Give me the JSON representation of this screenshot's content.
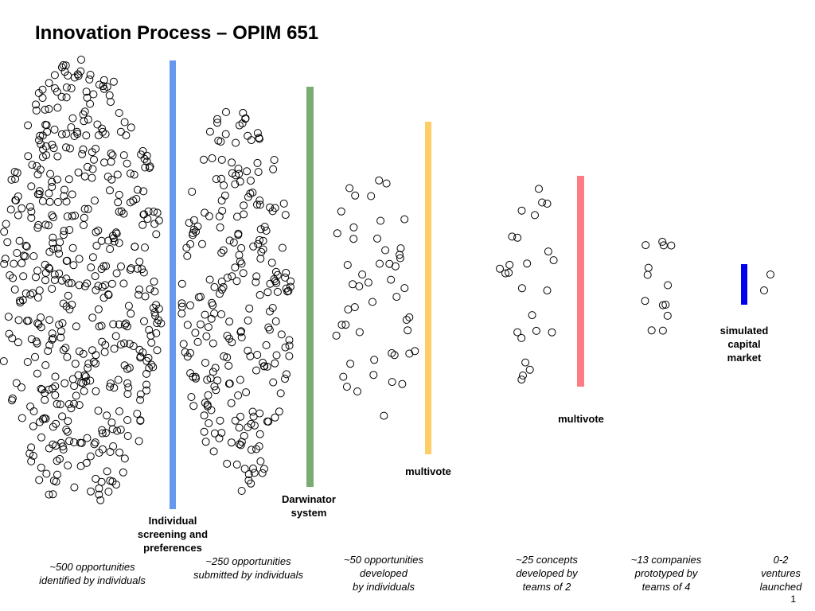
{
  "title": "Innovation Process – OPIM 651",
  "page_number": "1",
  "gates": [
    {
      "id": "screening",
      "label_lines": [
        "Individual",
        "screening and",
        "preferences"
      ],
      "color": "#6699ee"
    },
    {
      "id": "darwinator",
      "label_lines": [
        "Darwinator",
        "system"
      ],
      "color": "#7aab72"
    },
    {
      "id": "multivote1",
      "label_lines": [
        "multivote"
      ],
      "color": "#ffcc66"
    },
    {
      "id": "multivote2",
      "label_lines": [
        "multivote"
      ],
      "color": "#ff7b85"
    },
    {
      "id": "capital",
      "label_lines": [
        "simulated",
        "capital",
        "market"
      ],
      "color": "#0000ee"
    }
  ],
  "stages": [
    {
      "id": "identified",
      "label_lines": [
        "~500 opportunities",
        "identified by individuals"
      ]
    },
    {
      "id": "submitted",
      "label_lines": [
        "~250 opportunities",
        "submitted by individuals"
      ]
    },
    {
      "id": "developed",
      "label_lines": [
        "~50 opportunities",
        "developed",
        "by individuals"
      ]
    },
    {
      "id": "concepts",
      "label_lines": [
        "~25 concepts",
        "developed by",
        "teams of 2"
      ]
    },
    {
      "id": "companies",
      "label_lines": [
        "~13 companies",
        "prototyped by",
        "teams of 4"
      ]
    },
    {
      "id": "ventures",
      "label_lines": [
        "0-2",
        "ventures",
        "launched"
      ]
    }
  ],
  "circle_counts": {
    "identified": 500,
    "submitted": 250,
    "developed": 50,
    "concepts": 25,
    "companies": 13,
    "ventures": 2
  }
}
